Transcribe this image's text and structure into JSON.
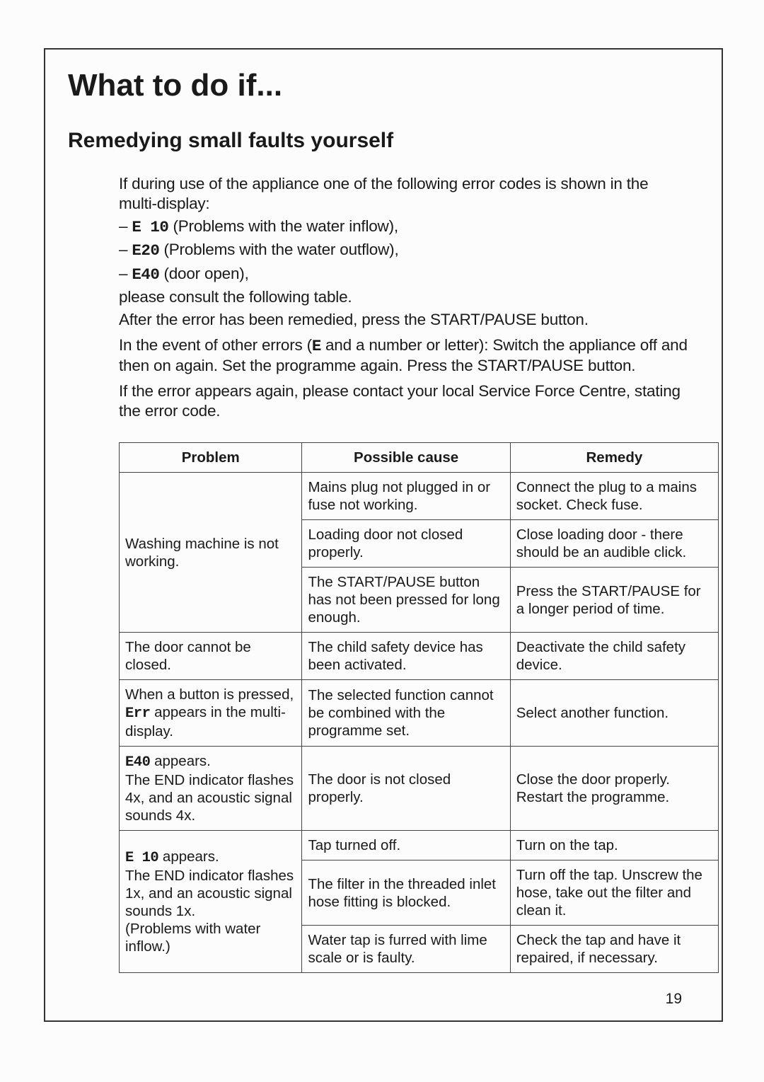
{
  "page_number": "19",
  "main_title": "What to do if...",
  "sub_title": "Remedying small faults yourself",
  "intro_p1": "If during use of the appliance one of the following error codes is shown in the multi-display:",
  "bullets": [
    {
      "dash": "– ",
      "code": "E 10",
      "rest": " (Problems with the water inflow),"
    },
    {
      "dash": "– ",
      "code": "E20",
      "rest": " (Problems with the water outflow),"
    },
    {
      "dash": "– ",
      "code": "E40",
      "rest": " (door open),"
    }
  ],
  "intro_p2": "please consult the following table.",
  "intro_p3": "After the error has been remedied, press the START/PAUSE button.",
  "intro_p4a": "In the event of other errors (",
  "intro_p4_code": "E",
  "intro_p4b": " and a number or letter): Switch the appliance off and then on again. Set the programme again. Press the START/PAUSE button.",
  "intro_p5": "If the error appears again, please contact your local Service Force Centre, stating the error code.",
  "table": {
    "headers": {
      "problem": "Problem",
      "cause": "Possible cause",
      "remedy": "Remedy"
    },
    "groups": [
      {
        "problem": {
          "plain": "Washing machine is not working."
        },
        "rows": [
          {
            "cause": "Mains plug not plugged in or fuse not working.",
            "remedy": "Connect the plug to a mains socket. Check fuse."
          },
          {
            "cause": "Loading door not closed properly.",
            "remedy": "Close loading door - there should be an audible click."
          },
          {
            "cause": "The START/PAUSE button has not been pressed for long enough.",
            "remedy": "Press the START/PAUSE for a longer period of time."
          }
        ]
      },
      {
        "problem": {
          "plain": "The door cannot be closed."
        },
        "rows": [
          {
            "cause": "The child safety device has been activated.",
            "remedy": "Deactivate the child safety device."
          }
        ]
      },
      {
        "problem": {
          "before": "When a button is pressed, ",
          "code": "Err",
          "after": " appears in the multi-display."
        },
        "rows": [
          {
            "cause": "The selected function cannot be combined with the programme set.",
            "remedy": "Select another function."
          }
        ]
      },
      {
        "problem": {
          "code": "E40",
          "after": " appears.\nThe END indicator flashes 4x, and an acoustic signal sounds 4x."
        },
        "rows": [
          {
            "cause": "The door is not closed properly.",
            "remedy": "Close the door properly. Restart the programme."
          }
        ]
      },
      {
        "problem": {
          "code": "E 10",
          "after": " appears.\nThe END indicator flashes 1x, and an acoustic signal sounds 1x.\n(Problems with water inflow.)"
        },
        "rows": [
          {
            "cause": "Tap turned off.",
            "remedy": "Turn on the tap."
          },
          {
            "cause": "The filter in the threaded inlet hose fitting is blocked.",
            "remedy": "Turn off the tap. Unscrew the hose, take out the filter and clean it."
          },
          {
            "cause": "Water tap is furred with lime scale or is faulty.",
            "remedy": "Check the tap and have it repaired, if necessary."
          }
        ]
      }
    ]
  }
}
